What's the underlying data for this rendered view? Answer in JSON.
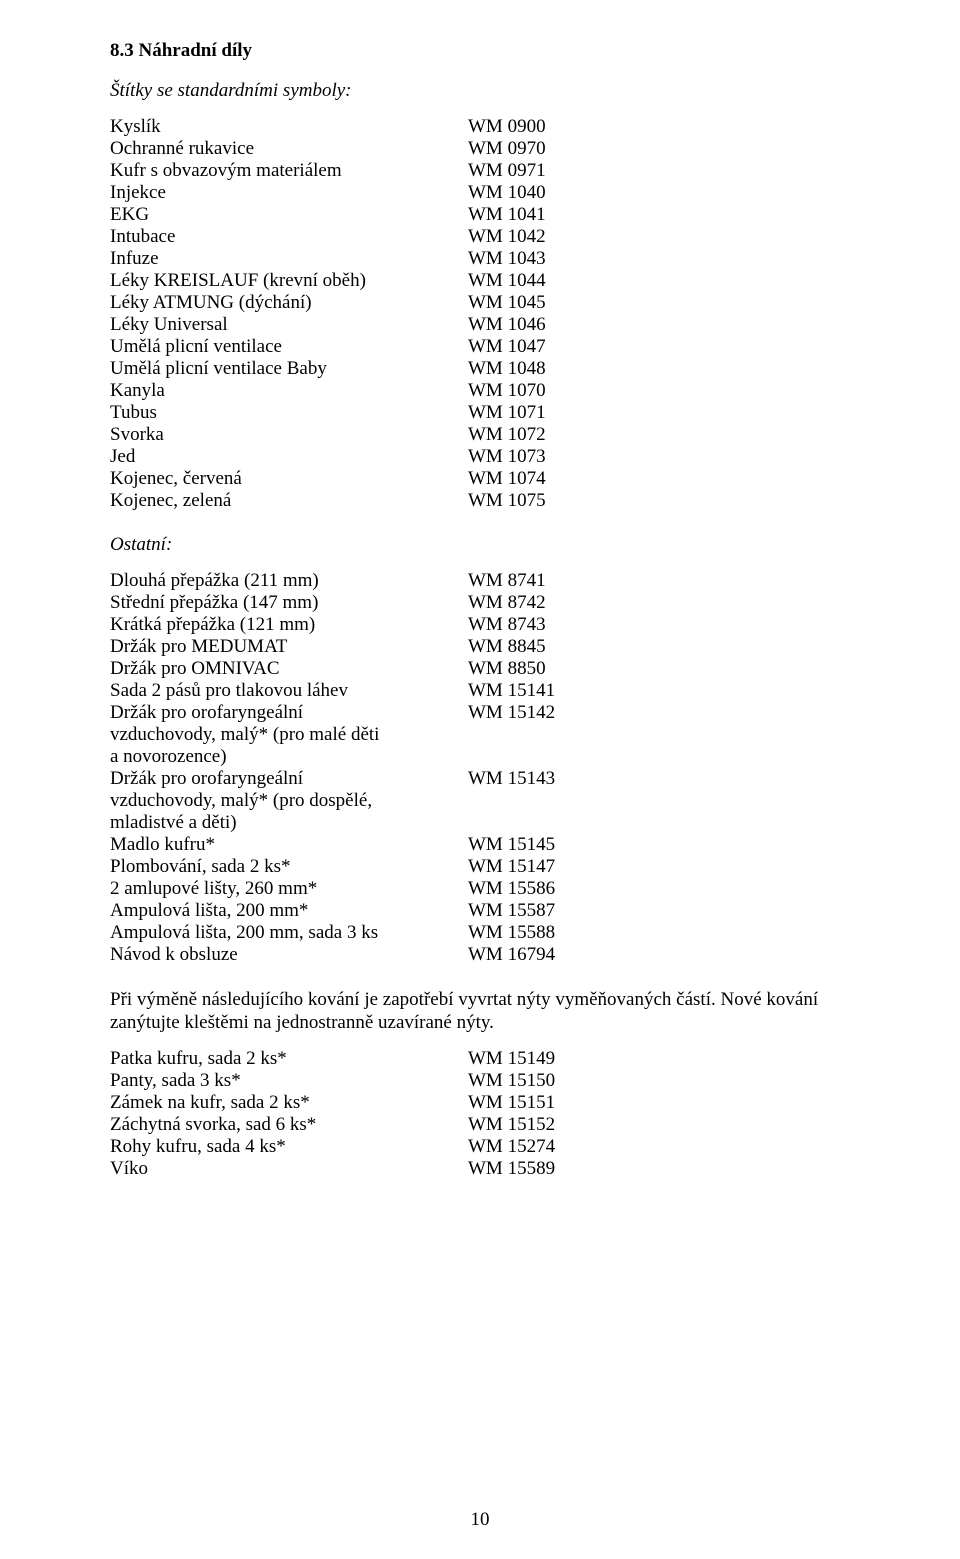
{
  "section_heading": "8.3 Náhradní díly",
  "sub1": "Štítky se standardními symboly:",
  "symbols": [
    {
      "label": "Kyslík",
      "value": "WM 0900"
    },
    {
      "label": "Ochranné rukavice",
      "value": "WM 0970"
    },
    {
      "label": "Kufr s obvazovým materiálem",
      "value": "WM 0971"
    },
    {
      "label": "Injekce",
      "value": "WM 1040"
    },
    {
      "label": "EKG",
      "value": "WM 1041"
    },
    {
      "label": "Intubace",
      "value": "WM 1042"
    },
    {
      "label": "Infuze",
      "value": "WM 1043"
    },
    {
      "label": "Léky KREISLAUF (krevní oběh)",
      "value": "WM 1044"
    },
    {
      "label": "Léky ATMUNG (dýchání)",
      "value": "WM 1045"
    },
    {
      "label": "Léky Universal",
      "value": "WM 1046"
    },
    {
      "label": "Umělá plicní ventilace",
      "value": "WM 1047"
    },
    {
      "label": "Umělá plicní ventilace Baby",
      "value": "WM 1048"
    },
    {
      "label": "Kanyla",
      "value": "WM 1070"
    },
    {
      "label": "Tubus",
      "value": "WM 1071"
    },
    {
      "label": "Svorka",
      "value": "WM 1072"
    },
    {
      "label": "Jed",
      "value": "WM 1073"
    },
    {
      "label": "Kojenec, červená",
      "value": "WM 1074"
    },
    {
      "label": "Kojenec, zelená",
      "value": "WM 1075"
    }
  ],
  "sub2": "Ostatní:",
  "others": [
    {
      "label": "Dlouhá přepážka (211 mm)",
      "value": "WM 8741"
    },
    {
      "label": "Střední přepážka (147 mm)",
      "value": "WM 8742"
    },
    {
      "label": "Krátká přepážka (121 mm)",
      "value": "WM 8743"
    },
    {
      "label": "Držák pro MEDUMAT",
      "value": "WM 8845"
    },
    {
      "label": "Držák pro OMNIVAC",
      "value": "WM 8850"
    },
    {
      "label": "Sada 2 pásů pro tlakovou láhev",
      "value": "WM 15141"
    },
    {
      "label": "Držák pro orofaryngeální\nvzduchovody, malý* (pro malé děti\na novorozence)",
      "value": "WM 15142"
    },
    {
      "label": "Držák pro orofaryngeální\nvzduchovody, malý* (pro dospělé,\nmladistvé a děti)",
      "value": "WM 15143"
    },
    {
      "label": "Madlo kufru*",
      "value": "WM 15145"
    },
    {
      "label": "Plombování, sada 2 ks*",
      "value": "WM 15147"
    },
    {
      "label": " 2 amlupové lišty, 260 mm*",
      "value": "WM 15586"
    },
    {
      "label": "Ampulová lišta, 200 mm*",
      "value": "WM 15587"
    },
    {
      "label": "Ampulová lišta, 200 mm, sada 3 ks",
      "value": "WM 15588"
    },
    {
      "label": "Návod k obsluze",
      "value": "WM 16794"
    }
  ],
  "paragraph": "Při výměně následujícího kování je zapotřebí vyvrtat nýty vyměňovaných částí. Nové kování zanýtujte kleštěmi na jednostranně uzavírané nýty.",
  "hardware": [
    {
      "label": "Patka kufru, sada 2 ks*",
      "value": "WM 15149"
    },
    {
      "label": "Panty, sada 3 ks*",
      "value": "WM 15150"
    },
    {
      "label": "Zámek na kufr, sada 2 ks*",
      "value": "WM 15151"
    },
    {
      "label": "Záchytná svorka, sad 6 ks*",
      "value": "WM 15152"
    },
    {
      "label": "Rohy kufru, sada 4 ks*",
      "value": "WM 15274"
    },
    {
      "label": "Víko",
      "value": "WM 15589"
    }
  ],
  "page_number": "10"
}
